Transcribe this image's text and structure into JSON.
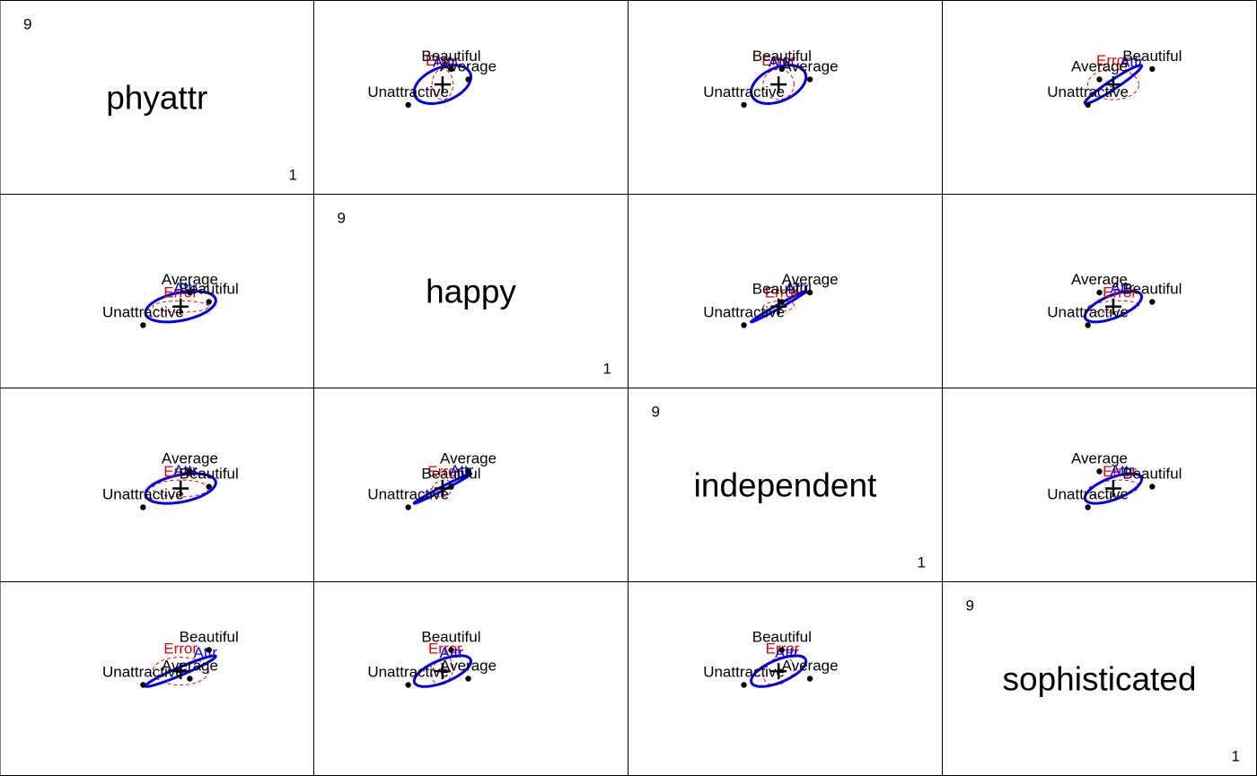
{
  "colors": {
    "hypothesis": "#0000ee",
    "error": "#ee0000",
    "points": "#000000",
    "frame": "#000000"
  },
  "legend": {
    "hypothesis_label": "Attr",
    "error_label": "Error"
  },
  "diagonal": {
    "max_label": "9",
    "min_label": "1"
  },
  "chart_data": {
    "type": "scatter",
    "variables": [
      "phyattr",
      "happy",
      "independent",
      "sophisticated"
    ],
    "scale_range": [
      1,
      9
    ],
    "group_labels": [
      "Beautiful",
      "Average",
      "Unattractive"
    ],
    "group_means": {
      "phyattr": [
        6.58,
        6.0,
        4.58
      ],
      "happy": [
        4.4,
        4.92,
        3.1
      ],
      "independent": [
        4.9,
        5.75,
        3.75
      ],
      "sophisticated": [
        6.6,
        5.0,
        4.65
      ]
    },
    "grand_mean": {
      "phyattr": 5.72,
      "happy": 4.14,
      "independent": 4.8,
      "sophisticated": 5.42
    },
    "hypothesis_ellipse": {
      "center": [
        5.72,
        4.14,
        4.8,
        5.42
      ],
      "var": [
        1.14,
        0.74,
        0.69,
        0.74
      ],
      "cor": [
        [
          1.0,
          0.39,
          0.39,
          0.96
        ],
        [
          0.39,
          1.0,
          0.99,
          0.63
        ],
        [
          0.39,
          0.99,
          1.0,
          0.63
        ],
        [
          0.96,
          0.63,
          0.63,
          1.0
        ]
      ]
    },
    "error_ellipse": {
      "center": [
        5.72,
        4.14,
        4.8,
        5.42
      ],
      "var": [
        0.72,
        0.102,
        0.22,
        0.6
      ],
      "cor": [
        [
          1.0,
          0.0,
          0.0,
          0.0
        ],
        [
          0.0,
          1.0,
          0.2,
          0.25
        ],
        [
          0.0,
          0.2,
          1.0,
          0.25
        ],
        [
          0.0,
          0.25,
          0.25,
          1.0
        ]
      ]
    },
    "hypothesis_name": "Attr",
    "error_name": "Error"
  }
}
